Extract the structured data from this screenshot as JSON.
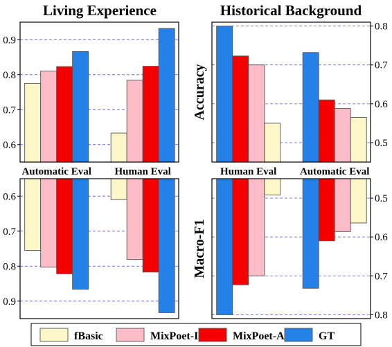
{
  "colors": {
    "fBasic": "#fdf6c9",
    "MixPoet-IG": "#fcbcc8",
    "MixPoet-AUS": "#f40000",
    "GT": "#2481e8",
    "grid": "#6a6ae0"
  },
  "legend": [
    "fBasic",
    "MixPoet-IG",
    "MixPoet-AUS",
    "GT"
  ],
  "chart_data": [
    {
      "type": "bar",
      "title": "Living Experience",
      "ylabel": "",
      "categories": [
        "Automatic Eval",
        "Human Eval"
      ],
      "series": [
        {
          "name": "fBasic",
          "values": [
            0.775,
            0.633
          ]
        },
        {
          "name": "MixPoet-IG",
          "values": [
            0.81,
            0.784
          ]
        },
        {
          "name": "MixPoet-AUS",
          "values": [
            0.823,
            0.824
          ]
        },
        {
          "name": "GT",
          "values": [
            0.866,
            0.932
          ]
        }
      ],
      "ylim": [
        0.55,
        0.95
      ],
      "yticks": [
        "0.6",
        "0.7",
        "0.8",
        "0.9"
      ],
      "grid": true
    },
    {
      "type": "bar",
      "title": "Historical Background",
      "ylabel": "Accuracy",
      "categories": [
        "Human Eval",
        "Automatic Eval"
      ],
      "series": [
        {
          "name": "GT",
          "values": [
            0.8,
            0.732
          ]
        },
        {
          "name": "MixPoet-AUS",
          "values": [
            0.723,
            0.61
          ]
        },
        {
          "name": "MixPoet-IG",
          "values": [
            0.7,
            0.588
          ]
        },
        {
          "name": "fBasic",
          "values": [
            0.55,
            0.565
          ]
        }
      ],
      "ylim": [
        0.45,
        0.81
      ],
      "yticks": [
        "0.5",
        "0.6",
        "0.7",
        "0.8"
      ],
      "grid": true
    },
    {
      "type": "bar",
      "title": "",
      "ylabel": "",
      "categories": [
        "Automatic Eval",
        "Human Eval"
      ],
      "series": [
        {
          "name": "fBasic",
          "values": [
            0.755,
            0.61
          ]
        },
        {
          "name": "MixPoet-IG",
          "values": [
            0.803,
            0.781
          ]
        },
        {
          "name": "MixPoet-AUS",
          "values": [
            0.822,
            0.817
          ]
        },
        {
          "name": "GT",
          "values": [
            0.866,
            0.933
          ]
        }
      ],
      "ylim": [
        0.55,
        0.95
      ],
      "yticks": [
        "0.6",
        "0.7",
        "0.8",
        "0.9"
      ],
      "grid": true
    },
    {
      "type": "bar",
      "title": "",
      "ylabel": "Macro-F1",
      "categories": [
        "Human Eval",
        "Automatic Eval"
      ],
      "series": [
        {
          "name": "GT",
          "values": [
            0.8,
            0.732
          ]
        },
        {
          "name": "MixPoet-AUS",
          "values": [
            0.723,
            0.61
          ]
        },
        {
          "name": "MixPoet-IG",
          "values": [
            0.7,
            0.586
          ]
        },
        {
          "name": "fBasic",
          "values": [
            0.492,
            0.564
          ]
        }
      ],
      "ylim": [
        0.45,
        0.81
      ],
      "yticks": [
        "0.5",
        "0.6",
        "0.7",
        "0.8"
      ],
      "grid": true
    }
  ]
}
